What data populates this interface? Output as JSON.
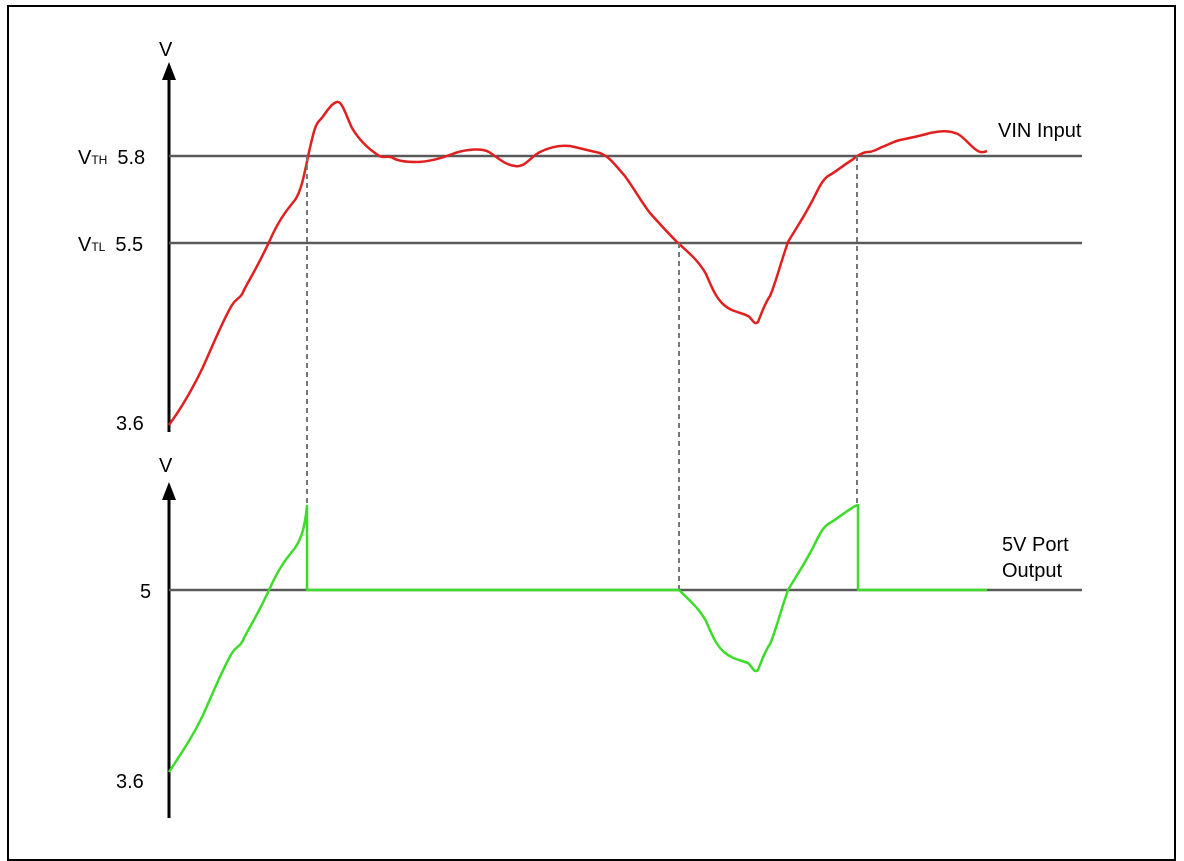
{
  "colors": {
    "vin_input_trace": "#e02020",
    "port_output_trace": "#3ddc2a",
    "threshold_lines": "#5a5a5a",
    "dashed_guides": "#777777",
    "axes": "#000000"
  },
  "top_plot": {
    "y_axis_label": "V",
    "vth_prefix": "V",
    "vth_sub": "TH",
    "vth_value": "5.8",
    "vtl_prefix": "V",
    "vtl_sub": "TL",
    "vtl_value": "5.5",
    "min_value": "3.6",
    "trace_label": "VIN Input"
  },
  "bottom_plot": {
    "y_axis_label": "V",
    "nominal_value": "5",
    "min_value": "3.6",
    "trace_label_line1": "5V Port",
    "trace_label_line2": "Output"
  }
}
